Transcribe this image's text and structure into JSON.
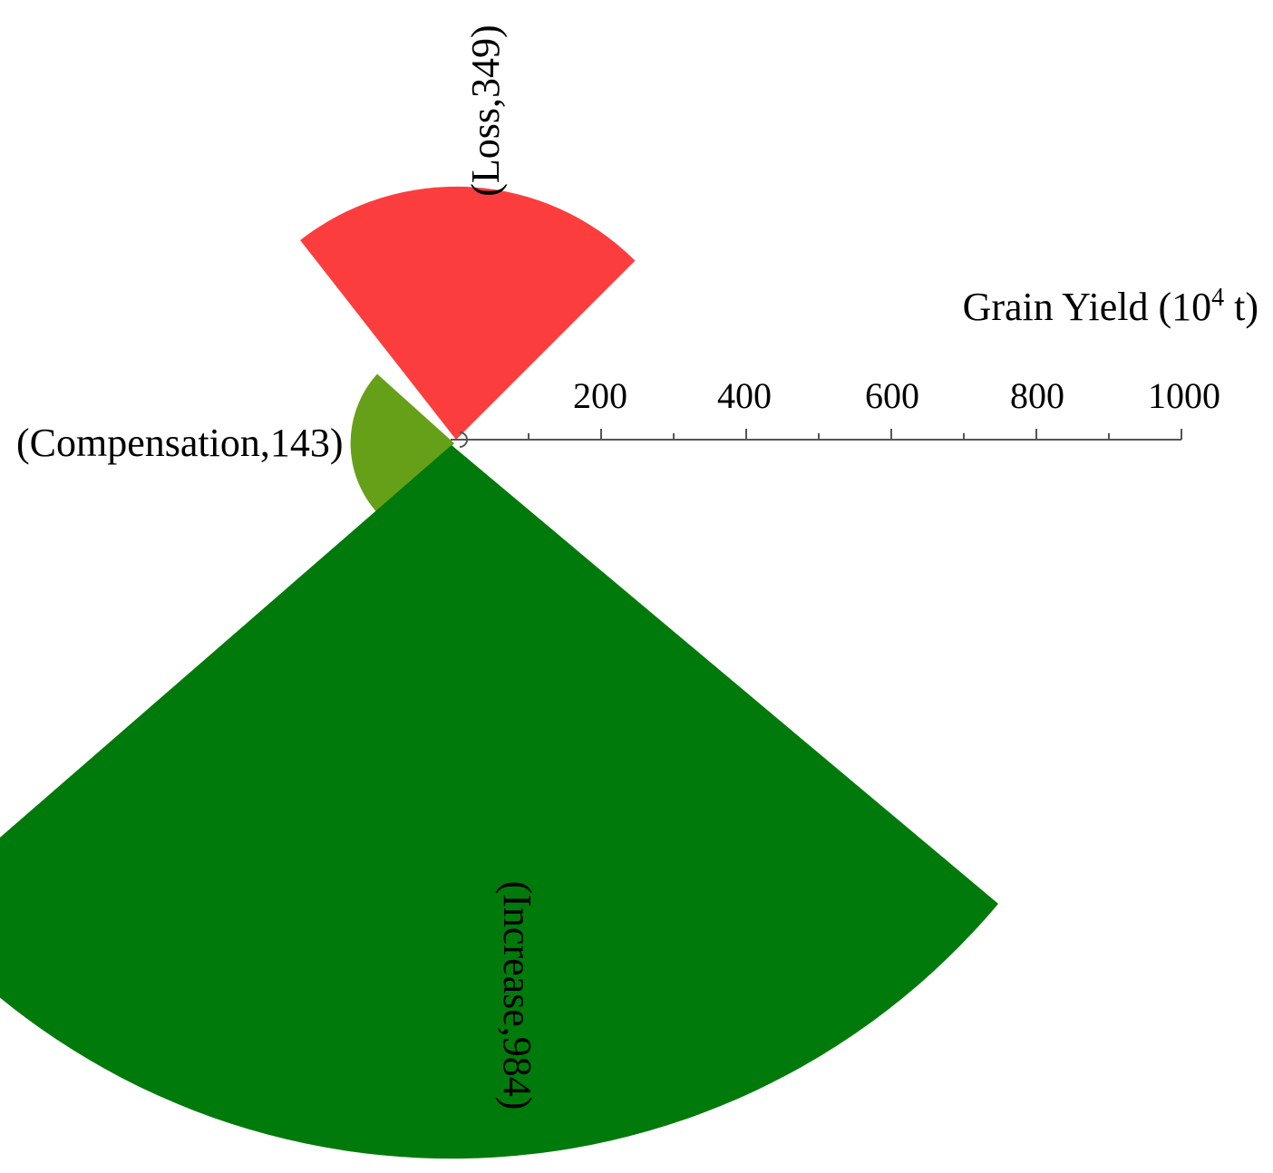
{
  "chart_data": {
    "type": "polar-area",
    "axis": {
      "title": "Grain Yield (10",
      "title_sup": "4",
      "title_end": " t)",
      "range": [
        0,
        1000
      ],
      "tick_labels": [
        "200",
        "400",
        "600",
        "800",
        "1000"
      ],
      "tick_values": [
        200,
        400,
        600,
        800,
        1000
      ],
      "minor_tick_values": [
        100,
        300,
        500,
        700,
        900
      ]
    },
    "sectors": [
      {
        "label": "(Loss,349)",
        "category": "Loss",
        "value": 349,
        "color": "#fc3d3d"
      },
      {
        "label": "(Compensation,143)",
        "category": "Compensation",
        "value": 143,
        "color": "#66a019"
      },
      {
        "label": "(Increase,984)",
        "category": "Increase",
        "value": 984,
        "color": "#007a0a"
      }
    ]
  }
}
